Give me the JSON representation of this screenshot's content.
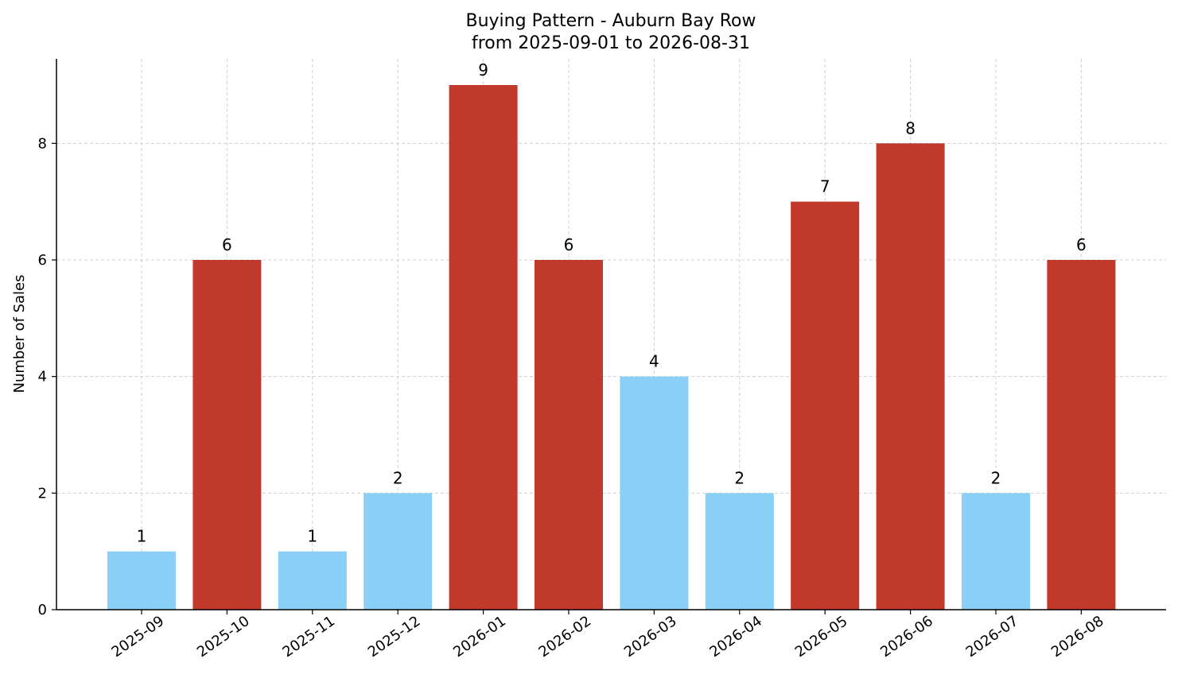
{
  "chart_data": {
    "type": "bar",
    "title": "Buying Pattern - Auburn Bay Row",
    "subtitle": "from 2025-09-01 to 2026-08-31",
    "xlabel": "",
    "ylabel": "Number of Sales",
    "categories": [
      "2025-09",
      "2025-10",
      "2025-11",
      "2025-12",
      "2026-01",
      "2026-02",
      "2026-03",
      "2026-04",
      "2026-05",
      "2026-06",
      "2026-07",
      "2026-08"
    ],
    "values": [
      1,
      6,
      1,
      2,
      9,
      6,
      4,
      2,
      7,
      8,
      2,
      6
    ],
    "bar_colors": [
      "#89CFF6",
      "#C0392B",
      "#89CFF6",
      "#89CFF6",
      "#C0392B",
      "#C0392B",
      "#89CFF6",
      "#89CFF6",
      "#C0392B",
      "#C0392B",
      "#89CFF6",
      "#C0392B"
    ],
    "ylim": [
      0,
      9.45
    ],
    "yticks": [
      0,
      2,
      4,
      6,
      8
    ],
    "grid": true,
    "legend": "none"
  }
}
